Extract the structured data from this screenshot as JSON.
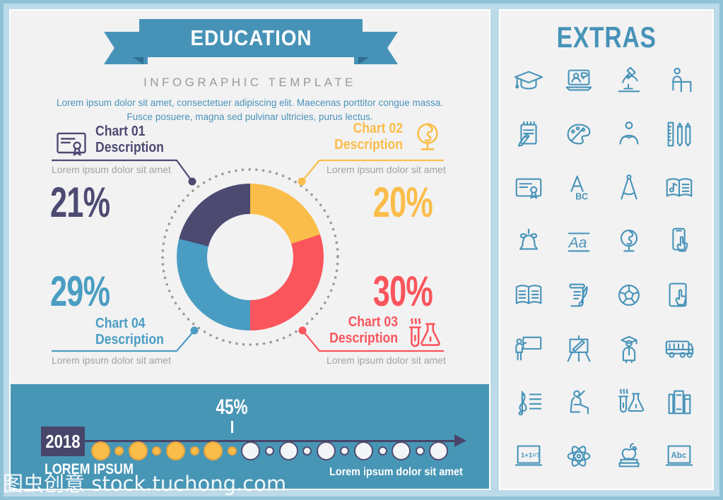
{
  "header": {
    "title": "EDUCATION",
    "subtitle": "INFOGRAPHIC TEMPLATE",
    "description": "Lorem ipsum dolor sit amet, consectetuer adipiscing elit. Maecenas porttitor congue massa. Fusce posuere, magna sed pulvinar ultricies, purus lectus."
  },
  "chart_data": {
    "type": "pie",
    "style": "donut",
    "title": "EDUCATION infographic donut chart",
    "slices": [
      {
        "label": "Chart 01 Description",
        "caption": "Lorem ipsum dolor sit amet",
        "value": 21,
        "percent_label": "21%",
        "color": "#4d4a72",
        "icon": "certificate-icon",
        "position": "top-left"
      },
      {
        "label": "Chart 02 Description",
        "caption": "Lorem ipsum dolor sit amet",
        "value": 20,
        "percent_label": "20%",
        "color": "#fbbd4a",
        "icon": "globe-icon",
        "position": "top-right"
      },
      {
        "label": "Chart 03 Description",
        "caption": "Lorem ipsum dolor sit amet",
        "value": 30,
        "percent_label": "30%",
        "color": "#fa555c",
        "icon": "chemistry-flasks-icon",
        "position": "bottom-right"
      },
      {
        "label": "Chart 04 Description",
        "caption": "Lorem ipsum dolor sit amet",
        "value": 29,
        "percent_label": "29%",
        "color": "#4a9dc2",
        "icon": null,
        "position": "bottom-left"
      }
    ],
    "clockwise_order_from_top": [
      1,
      2,
      3,
      0
    ],
    "legend_position": "around",
    "grid": false
  },
  "timeline": {
    "year": "2018",
    "marker_label": "45%",
    "marker_dot_index": 7,
    "dots": [
      {
        "size": "large",
        "color": "yellow"
      },
      {
        "size": "small",
        "color": "yellow"
      },
      {
        "size": "large",
        "color": "yellow"
      },
      {
        "size": "small",
        "color": "yellow"
      },
      {
        "size": "large",
        "color": "yellow"
      },
      {
        "size": "small",
        "color": "yellow"
      },
      {
        "size": "large",
        "color": "yellow"
      },
      {
        "size": "small",
        "color": "yellow"
      },
      {
        "size": "large",
        "color": "white"
      },
      {
        "size": "small",
        "color": "white"
      },
      {
        "size": "large",
        "color": "white"
      },
      {
        "size": "small",
        "color": "white"
      },
      {
        "size": "large",
        "color": "white"
      },
      {
        "size": "small",
        "color": "white"
      },
      {
        "size": "large",
        "color": "white"
      },
      {
        "size": "small",
        "color": "white"
      },
      {
        "size": "large",
        "color": "white"
      },
      {
        "size": "small",
        "color": "white"
      },
      {
        "size": "large",
        "color": "white"
      }
    ],
    "footer_left": "LOREM IPSUM",
    "footer_right": "Lorem ipsum dolor sit amet"
  },
  "extras": {
    "title": "EXTRAS",
    "icons": [
      "graduation-cap-icon",
      "online-class-icon",
      "microscope-icon",
      "student-at-desk-icon",
      "notepad-icon",
      "paint-palette-icon",
      "reading-person-icon",
      "ruler-pencils-icon",
      "certificate-icon",
      "abc-letters-icon",
      "drafting-compass-icon",
      "music-book-icon",
      "school-bell-icon",
      "handwriting-icon",
      "globe-icon",
      "smartphone-touch-icon",
      "open-book-icon",
      "scroll-quill-icon",
      "soccer-ball-icon",
      "tablet-touch-icon",
      "teacher-board-icon",
      "easel-icon",
      "graduate-icon",
      "school-bus-icon",
      "treble-clef-icon",
      "student-raising-hand-icon",
      "chemistry-flasks-icon",
      "book-shelf-icon",
      "math-board-icon",
      "atom-icon",
      "apple-books-icon",
      "abc-board-icon"
    ]
  },
  "watermark": "图虫创意 stock.tuchong.com",
  "colors": {
    "frame_outer": "#8fc2d7",
    "frame_inner": "#bcdae8",
    "panel": "#f2f2f3",
    "ribbon": "#4793b8",
    "ribbon_fold": "#2e6e90",
    "band": "#4896b6",
    "navy": "#474569",
    "icon_stroke": "#4793b8",
    "caption_gray": "#a2a2a2",
    "dotted_circle": "#9b9b9b",
    "timeline_yellow": "#fbbd4a",
    "timeline_white": "#f4f5f7"
  }
}
